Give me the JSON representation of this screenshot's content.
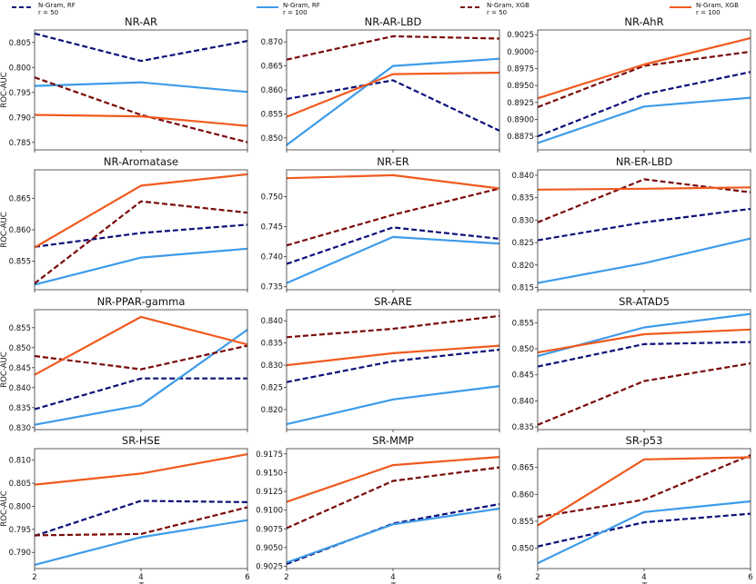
{
  "figure": {
    "x_axis_symbol": "T",
    "y_axis_label": "ROC-AUC"
  },
  "legend": [
    {
      "name": "N-Gram, RF",
      "sub": "r = 50",
      "color": "#0c0f7a",
      "dash": true
    },
    {
      "name": "N-Gram, RF",
      "sub": "r = 100",
      "color": "#3d9be9",
      "dash": false
    },
    {
      "name": "N-Gram, XGB",
      "sub": "r = 50",
      "color": "#7a0a0a",
      "dash": true
    },
    {
      "name": "N-Gram, XGB",
      "sub": "r = 100",
      "color": "#f05a1e",
      "dash": false
    }
  ],
  "chart_data": [
    {
      "type": "line",
      "title": "NR-AR",
      "x": [
        2,
        4,
        6
      ],
      "ylim": [
        0.7835,
        0.8075
      ],
      "yticks": [
        "0.785",
        "0.790",
        "0.795",
        "0.800",
        "0.805"
      ],
      "series": [
        {
          "name": "N-Gram, RF r=50",
          "values": [
            0.8068,
            0.8013,
            0.8053
          ]
        },
        {
          "name": "N-Gram, RF r=100",
          "values": [
            0.7963,
            0.797,
            0.7951
          ]
        },
        {
          "name": "N-Gram, XGB r=50",
          "values": [
            0.798,
            0.7905,
            0.785
          ]
        },
        {
          "name": "N-Gram, XGB r=100",
          "values": [
            0.7905,
            0.7902,
            0.7883
          ]
        }
      ]
    },
    {
      "type": "line",
      "title": "NR-AR-LBD",
      "x": [
        2,
        4,
        6
      ],
      "ylim": [
        0.8475,
        0.8725
      ],
      "yticks": [
        "0.850",
        "0.855",
        "0.860",
        "0.865",
        "0.870"
      ],
      "series": [
        {
          "name": "N-Gram, RF r=50",
          "values": [
            0.8581,
            0.862,
            0.8515
          ]
        },
        {
          "name": "N-Gram, RF r=100",
          "values": [
            0.8485,
            0.865,
            0.8665
          ]
        },
        {
          "name": "N-Gram, XGB r=50",
          "values": [
            0.8663,
            0.8712,
            0.8707
          ]
        },
        {
          "name": "N-Gram, XGB r=100",
          "values": [
            0.8544,
            0.8633,
            0.8636
          ]
        }
      ]
    },
    {
      "type": "line",
      "title": "NR-AhR",
      "x": [
        2,
        4,
        6
      ],
      "ylim": [
        0.8855,
        0.9032
      ],
      "yticks": [
        "0.8875",
        "0.8900",
        "0.8925",
        "0.8950",
        "0.8975",
        "0.9000",
        "0.9025"
      ],
      "series": [
        {
          "name": "N-Gram, RF r=50",
          "values": [
            0.8875,
            0.8937,
            0.897
          ]
        },
        {
          "name": "N-Gram, RF r=100",
          "values": [
            0.8865,
            0.8919,
            0.8932
          ]
        },
        {
          "name": "N-Gram, XGB r=50",
          "values": [
            0.8918,
            0.8979,
            0.9
          ]
        },
        {
          "name": "N-Gram, XGB r=100",
          "values": [
            0.8931,
            0.8981,
            0.902
          ]
        }
      ]
    },
    {
      "type": "line",
      "title": "NR-Aromatase",
      "x": [
        2,
        4,
        6
      ],
      "ylim": [
        0.8505,
        0.8695
      ],
      "yticks": [
        "0.855",
        "0.860",
        "0.865"
      ],
      "series": [
        {
          "name": "N-Gram, RF r=50",
          "values": [
            0.8573,
            0.8595,
            0.8608
          ]
        },
        {
          "name": "N-Gram, RF r=100",
          "values": [
            0.8513,
            0.8556,
            0.857
          ]
        },
        {
          "name": "N-Gram, XGB r=50",
          "values": [
            0.8515,
            0.8645,
            0.8627
          ]
        },
        {
          "name": "N-Gram, XGB r=100",
          "values": [
            0.8572,
            0.867,
            0.8688
          ]
        }
      ]
    },
    {
      "type": "line",
      "title": "NR-ER",
      "x": [
        2,
        4,
        6
      ],
      "ylim": [
        0.7345,
        0.7545
      ],
      "yticks": [
        "0.735",
        "0.740",
        "0.745",
        "0.750"
      ],
      "series": [
        {
          "name": "N-Gram, RF r=50",
          "values": [
            0.7388,
            0.7449,
            0.743
          ]
        },
        {
          "name": "N-Gram, RF r=100",
          "values": [
            0.7356,
            0.7433,
            0.7422
          ]
        },
        {
          "name": "N-Gram, XGB r=50",
          "values": [
            0.7419,
            0.747,
            0.7514
          ]
        },
        {
          "name": "N-Gram, XGB r=100",
          "values": [
            0.7531,
            0.7536,
            0.7514
          ]
        }
      ]
    },
    {
      "type": "line",
      "title": "NR-ER-LBD",
      "x": [
        2,
        4,
        6
      ],
      "ylim": [
        0.8145,
        0.8412
      ],
      "yticks": [
        "0.815",
        "0.820",
        "0.825",
        "0.830",
        "0.835",
        "0.840"
      ],
      "series": [
        {
          "name": "N-Gram, RF r=50",
          "values": [
            0.8255,
            0.8295,
            0.8325
          ]
        },
        {
          "name": "N-Gram, RF r=100",
          "values": [
            0.816,
            0.8204,
            0.8259
          ]
        },
        {
          "name": "N-Gram, XGB r=50",
          "values": [
            0.8295,
            0.8391,
            0.8362
          ]
        },
        {
          "name": "N-Gram, XGB r=100",
          "values": [
            0.8368,
            0.837,
            0.8373
          ]
        }
      ]
    },
    {
      "type": "line",
      "title": "NR-PPAR-gamma",
      "x": [
        2,
        4,
        6
      ],
      "ylim": [
        0.8295,
        0.8595
      ],
      "yticks": [
        "0.830",
        "0.835",
        "0.840",
        "0.845",
        "0.850",
        "0.855"
      ],
      "series": [
        {
          "name": "N-Gram, RF r=50",
          "values": [
            0.8346,
            0.8423,
            0.8423
          ]
        },
        {
          "name": "N-Gram, RF r=100",
          "values": [
            0.8307,
            0.8356,
            0.8545
          ]
        },
        {
          "name": "N-Gram, XGB r=50",
          "values": [
            0.8479,
            0.8446,
            0.8505
          ]
        },
        {
          "name": "N-Gram, XGB r=100",
          "values": [
            0.8432,
            0.8577,
            0.8508
          ]
        }
      ]
    },
    {
      "type": "line",
      "title": "SR-ARE",
      "x": [
        2,
        4,
        6
      ],
      "ylim": [
        0.8155,
        0.8425
      ],
      "yticks": [
        "0.820",
        "0.825",
        "0.830",
        "0.835",
        "0.840"
      ],
      "series": [
        {
          "name": "N-Gram, RF r=50",
          "values": [
            0.8262,
            0.8309,
            0.8335
          ]
        },
        {
          "name": "N-Gram, RF r=100",
          "values": [
            0.8167,
            0.8223,
            0.8253
          ]
        },
        {
          "name": "N-Gram, XGB r=50",
          "values": [
            0.8363,
            0.8382,
            0.8411
          ]
        },
        {
          "name": "N-Gram, XGB r=100",
          "values": [
            0.83,
            0.8327,
            0.8344
          ]
        }
      ]
    },
    {
      "type": "line",
      "title": "SR-ATAD5",
      "x": [
        2,
        4,
        6
      ],
      "ylim": [
        0.8345,
        0.8575
      ],
      "yticks": [
        "0.835",
        "0.840",
        "0.845",
        "0.850",
        "0.855"
      ],
      "series": [
        {
          "name": "N-Gram, RF r=50",
          "values": [
            0.8466,
            0.8509,
            0.8513
          ]
        },
        {
          "name": "N-Gram, RF r=100",
          "values": [
            0.8486,
            0.8541,
            0.8567
          ]
        },
        {
          "name": "N-Gram, XGB r=50",
          "values": [
            0.8354,
            0.8438,
            0.8472
          ]
        },
        {
          "name": "N-Gram, XGB r=100",
          "values": [
            0.8493,
            0.8528,
            0.8537
          ]
        }
      ]
    },
    {
      "type": "line",
      "title": "SR-HSE",
      "x": [
        2,
        4,
        6
      ],
      "ylim": [
        0.7865,
        0.8125
      ],
      "yticks": [
        "0.790",
        "0.795",
        "0.800",
        "0.805",
        "0.810"
      ],
      "series": [
        {
          "name": "N-Gram, RF r=50",
          "values": [
            0.7936,
            0.8012,
            0.8009
          ]
        },
        {
          "name": "N-Gram, RF r=100",
          "values": [
            0.7873,
            0.7933,
            0.797
          ]
        },
        {
          "name": "N-Gram, XGB r=50",
          "values": [
            0.7937,
            0.794,
            0.7998
          ]
        },
        {
          "name": "N-Gram, XGB r=100",
          "values": [
            0.8047,
            0.8071,
            0.8113
          ]
        }
      ]
    },
    {
      "type": "line",
      "title": "SR-MMP",
      "x": [
        2,
        4,
        6
      ],
      "ylim": [
        0.9022,
        0.9182
      ],
      "yticks": [
        "0.9025",
        "0.9050",
        "0.9075",
        "0.9100",
        "0.9125",
        "0.9150",
        "0.9175"
      ],
      "series": [
        {
          "name": "N-Gram, RF r=50",
          "values": [
            0.9028,
            0.9082,
            0.9108
          ]
        },
        {
          "name": "N-Gram, RF r=100",
          "values": [
            0.903,
            0.9081,
            0.9102
          ]
        },
        {
          "name": "N-Gram, XGB r=50",
          "values": [
            0.9076,
            0.9139,
            0.9157
          ]
        },
        {
          "name": "N-Gram, XGB r=100",
          "values": [
            0.9111,
            0.916,
            0.9171
          ]
        }
      ]
    },
    {
      "type": "line",
      "title": "SR-p53",
      "x": [
        2,
        4,
        6
      ],
      "ylim": [
        0.8462,
        0.8685
      ],
      "yticks": [
        "0.850",
        "0.855",
        "0.860",
        "0.865"
      ],
      "series": [
        {
          "name": "N-Gram, RF r=50",
          "values": [
            0.8503,
            0.8548,
            0.8564
          ]
        },
        {
          "name": "N-Gram, RF r=100",
          "values": [
            0.8472,
            0.8567,
            0.8587
          ]
        },
        {
          "name": "N-Gram, XGB r=50",
          "values": [
            0.8558,
            0.859,
            0.8673
          ]
        },
        {
          "name": "N-Gram, XGB r=100",
          "values": [
            0.8542,
            0.8665,
            0.8669
          ]
        }
      ]
    }
  ]
}
